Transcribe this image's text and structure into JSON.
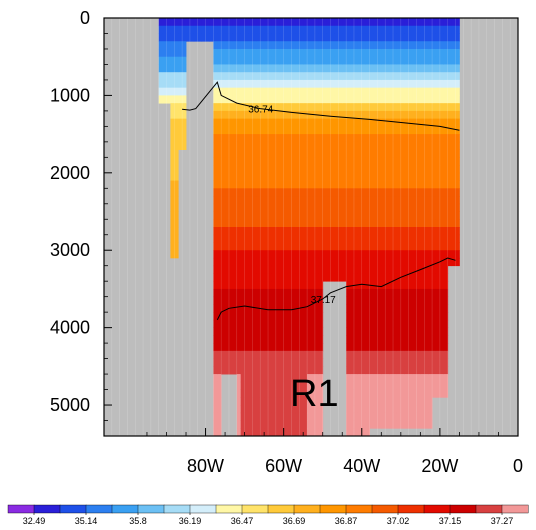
{
  "chart_data": {
    "type": "heatmap",
    "title": "",
    "xlabel": "",
    "ylabel": "",
    "x_ticks": [
      "80W",
      "60W",
      "40W",
      "20W",
      "0"
    ],
    "x_tick_values": [
      -80,
      -60,
      -40,
      -20,
      0
    ],
    "xlim": [
      -106,
      0
    ],
    "y_ticks": [
      "0",
      "1000",
      "2000",
      "3000",
      "4000",
      "5000"
    ],
    "y_tick_values": [
      0,
      1000,
      2000,
      3000,
      4000,
      5000
    ],
    "ylim": [
      5400,
      0
    ],
    "y_reversed": true,
    "land_color": "#bdbdbd",
    "colorbar": {
      "labels": [
        "32.49",
        "35.14",
        "35.8",
        "36.19",
        "36.47",
        "36.69",
        "36.87",
        "37.02",
        "37.15",
        "37.27"
      ],
      "colors": [
        "#8a2be2",
        "#2a1fd8",
        "#1e50e8",
        "#2c7ff0",
        "#3aa0f2",
        "#6cc0f4",
        "#a6dcf6",
        "#d4eefa",
        "#fff7a6",
        "#ffe36a",
        "#ffca3a",
        "#ffb01e",
        "#ff9600",
        "#ff7c00",
        "#f55a00",
        "#ee3000",
        "#e20a00",
        "#cc0000",
        "#d84040",
        "#f29898"
      ]
    },
    "contours": [
      {
        "label": "36.74",
        "points": [
          [
            -86,
            1180
          ],
          [
            -84,
            1190
          ],
          [
            -82.5,
            1170
          ],
          [
            -77,
            830
          ],
          [
            -76,
            1000
          ],
          [
            -72,
            1100
          ],
          [
            -66,
            1170
          ],
          [
            -58,
            1220
          ],
          [
            -48,
            1270
          ],
          [
            -38,
            1310
          ],
          [
            -28,
            1360
          ],
          [
            -20,
            1400
          ],
          [
            -15,
            1450
          ]
        ]
      },
      {
        "label": "37.17",
        "points": [
          [
            -77,
            3900
          ],
          [
            -76,
            3800
          ],
          [
            -74,
            3750
          ],
          [
            -70,
            3720
          ],
          [
            -64,
            3770
          ],
          [
            -58,
            3770
          ],
          [
            -54,
            3730
          ],
          [
            -50,
            3630
          ],
          [
            -48,
            3550
          ],
          [
            -44,
            3470
          ],
          [
            -40,
            3440
          ],
          [
            -35,
            3470
          ],
          [
            -30,
            3350
          ],
          [
            -25,
            3250
          ],
          [
            -20,
            3150
          ],
          [
            -18,
            3100
          ],
          [
            -16,
            3130
          ]
        ]
      }
    ],
    "annotation": "R1"
  }
}
